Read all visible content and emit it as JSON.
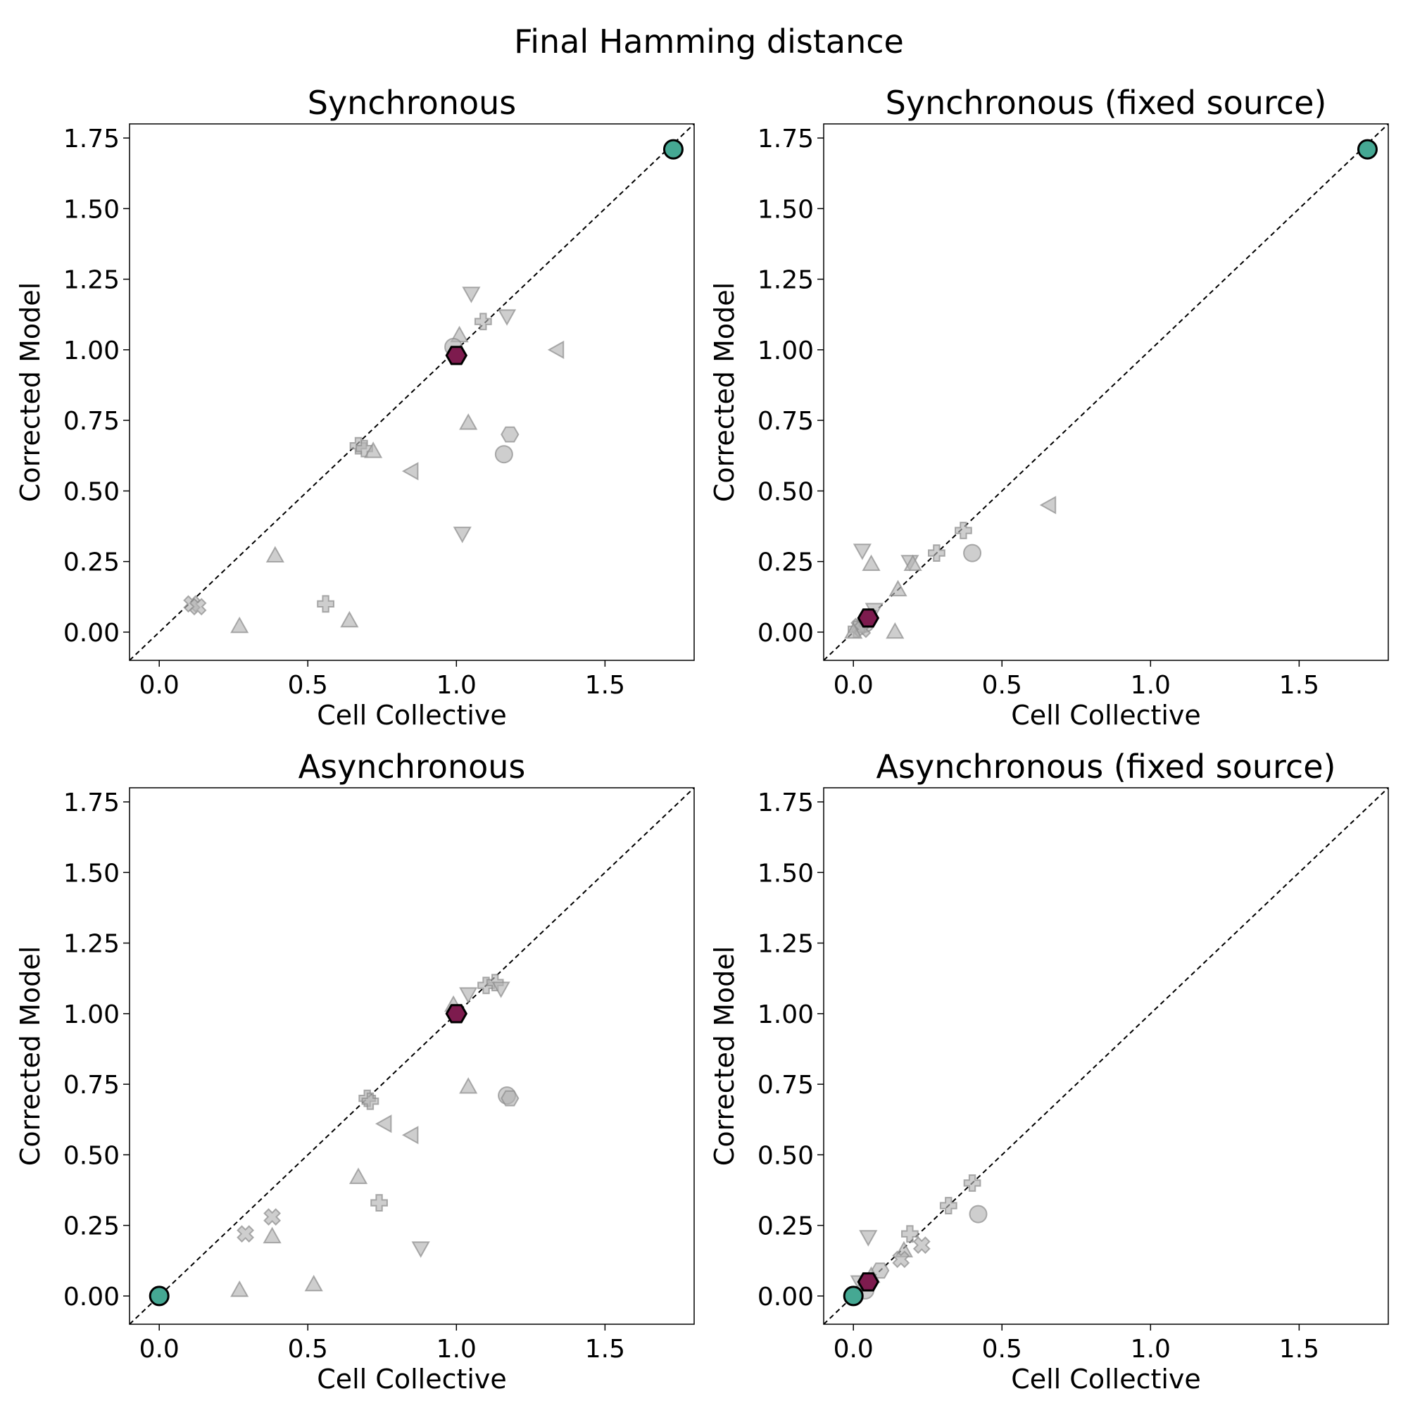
{
  "figure": {
    "suptitle": "Final Hamming distance"
  },
  "chart_data": [
    {
      "type": "scatter",
      "title": "Synchronous",
      "xlabel": "Cell Collective",
      "ylabel": "Corrected Model",
      "xlim": [
        -0.1,
        1.8
      ],
      "ylim": [
        -0.1,
        1.8
      ],
      "xticks": [
        "0.0",
        "0.5",
        "1.0",
        "1.5"
      ],
      "yticks": [
        "0.00",
        "0.25",
        "0.50",
        "0.75",
        "1.00",
        "1.25",
        "1.50",
        "1.75"
      ],
      "diagonal": true,
      "points": [
        {
          "x": 1.05,
          "y": 1.2,
          "marker": "triangle-down",
          "highlight": "none"
        },
        {
          "x": 1.09,
          "y": 1.1,
          "marker": "plus",
          "highlight": "none"
        },
        {
          "x": 1.17,
          "y": 1.12,
          "marker": "triangle-down",
          "highlight": "none"
        },
        {
          "x": 1.01,
          "y": 1.05,
          "marker": "triangle-up",
          "highlight": "none"
        },
        {
          "x": 0.99,
          "y": 1.01,
          "marker": "circle",
          "highlight": "none"
        },
        {
          "x": 1.34,
          "y": 1.0,
          "marker": "triangle-left",
          "highlight": "none"
        },
        {
          "x": 1.04,
          "y": 0.74,
          "marker": "triangle-up",
          "highlight": "none"
        },
        {
          "x": 1.18,
          "y": 0.7,
          "marker": "hexagon",
          "highlight": "none"
        },
        {
          "x": 1.16,
          "y": 0.63,
          "marker": "circle",
          "highlight": "none"
        },
        {
          "x": 0.67,
          "y": 0.66,
          "marker": "plus",
          "highlight": "none"
        },
        {
          "x": 0.69,
          "y": 0.65,
          "marker": "plus",
          "highlight": "none"
        },
        {
          "x": 0.72,
          "y": 0.64,
          "marker": "triangle-up",
          "highlight": "none"
        },
        {
          "x": 0.85,
          "y": 0.57,
          "marker": "triangle-left",
          "highlight": "none"
        },
        {
          "x": 1.02,
          "y": 0.35,
          "marker": "triangle-down",
          "highlight": "none"
        },
        {
          "x": 0.39,
          "y": 0.27,
          "marker": "triangle-up",
          "highlight": "none"
        },
        {
          "x": 0.11,
          "y": 0.1,
          "marker": "x",
          "highlight": "none"
        },
        {
          "x": 0.13,
          "y": 0.09,
          "marker": "x",
          "highlight": "none"
        },
        {
          "x": 0.56,
          "y": 0.1,
          "marker": "plus",
          "highlight": "none"
        },
        {
          "x": 0.27,
          "y": 0.02,
          "marker": "triangle-up",
          "highlight": "none"
        },
        {
          "x": 0.64,
          "y": 0.04,
          "marker": "triangle-up",
          "highlight": "none"
        },
        {
          "x": 1.0,
          "y": 0.98,
          "marker": "hexagon",
          "highlight": "purple"
        },
        {
          "x": 1.73,
          "y": 1.71,
          "marker": "circle",
          "highlight": "teal"
        }
      ]
    },
    {
      "type": "scatter",
      "title": "Synchronous (fixed source)",
      "xlabel": "Cell Collective",
      "ylabel": "Corrected Model",
      "xlim": [
        -0.1,
        1.8
      ],
      "ylim": [
        -0.1,
        1.8
      ],
      "xticks": [
        "0.0",
        "0.5",
        "1.0",
        "1.5"
      ],
      "yticks": [
        "0.00",
        "0.25",
        "0.50",
        "0.75",
        "1.00",
        "1.25",
        "1.50",
        "1.75"
      ],
      "diagonal": true,
      "points": [
        {
          "x": 0.66,
          "y": 0.45,
          "marker": "triangle-left",
          "highlight": "none"
        },
        {
          "x": 0.37,
          "y": 0.36,
          "marker": "plus",
          "highlight": "none"
        },
        {
          "x": 0.4,
          "y": 0.28,
          "marker": "circle",
          "highlight": "none"
        },
        {
          "x": 0.28,
          "y": 0.28,
          "marker": "plus",
          "highlight": "none"
        },
        {
          "x": 0.03,
          "y": 0.29,
          "marker": "triangle-down",
          "highlight": "none"
        },
        {
          "x": 0.06,
          "y": 0.24,
          "marker": "triangle-up",
          "highlight": "none"
        },
        {
          "x": 0.19,
          "y": 0.25,
          "marker": "triangle-down",
          "highlight": "none"
        },
        {
          "x": 0.2,
          "y": 0.24,
          "marker": "triangle-up",
          "highlight": "none"
        },
        {
          "x": 0.15,
          "y": 0.15,
          "marker": "triangle-up",
          "highlight": "none"
        },
        {
          "x": 0.07,
          "y": 0.08,
          "marker": "triangle-down",
          "highlight": "none"
        },
        {
          "x": 0.14,
          "y": 0.0,
          "marker": "triangle-up",
          "highlight": "none"
        },
        {
          "x": 0.04,
          "y": 0.03,
          "marker": "circle",
          "highlight": "none"
        },
        {
          "x": 0.02,
          "y": 0.02,
          "marker": "x",
          "highlight": "none"
        },
        {
          "x": 0.01,
          "y": 0.01,
          "marker": "plus",
          "highlight": "none"
        },
        {
          "x": 0.03,
          "y": 0.01,
          "marker": "x",
          "highlight": "none"
        },
        {
          "x": 0.0,
          "y": 0.0,
          "marker": "triangle-up",
          "highlight": "none"
        },
        {
          "x": 0.05,
          "y": 0.05,
          "marker": "hexagon",
          "highlight": "purple"
        },
        {
          "x": 1.73,
          "y": 1.71,
          "marker": "circle",
          "highlight": "teal"
        }
      ]
    },
    {
      "type": "scatter",
      "title": "Asynchronous",
      "xlabel": "Cell Collective",
      "ylabel": "Corrected Model",
      "xlim": [
        -0.1,
        1.8
      ],
      "ylim": [
        -0.1,
        1.8
      ],
      "xticks": [
        "0.0",
        "0.5",
        "1.0",
        "1.5"
      ],
      "yticks": [
        "0.00",
        "0.25",
        "0.50",
        "0.75",
        "1.00",
        "1.25",
        "1.50",
        "1.75"
      ],
      "diagonal": true,
      "points": [
        {
          "x": 1.1,
          "y": 1.1,
          "marker": "plus",
          "highlight": "none"
        },
        {
          "x": 1.13,
          "y": 1.11,
          "marker": "plus",
          "highlight": "none"
        },
        {
          "x": 1.15,
          "y": 1.09,
          "marker": "triangle-down",
          "highlight": "none"
        },
        {
          "x": 1.04,
          "y": 1.07,
          "marker": "triangle-down",
          "highlight": "none"
        },
        {
          "x": 0.99,
          "y": 1.03,
          "marker": "triangle-up",
          "highlight": "none"
        },
        {
          "x": 1.04,
          "y": 0.74,
          "marker": "triangle-up",
          "highlight": "none"
        },
        {
          "x": 1.17,
          "y": 0.71,
          "marker": "circle",
          "highlight": "none"
        },
        {
          "x": 1.18,
          "y": 0.7,
          "marker": "hexagon",
          "highlight": "none"
        },
        {
          "x": 0.7,
          "y": 0.7,
          "marker": "plus",
          "highlight": "none"
        },
        {
          "x": 0.71,
          "y": 0.69,
          "marker": "plus",
          "highlight": "none"
        },
        {
          "x": 0.76,
          "y": 0.61,
          "marker": "triangle-left",
          "highlight": "none"
        },
        {
          "x": 0.85,
          "y": 0.57,
          "marker": "triangle-left",
          "highlight": "none"
        },
        {
          "x": 0.67,
          "y": 0.42,
          "marker": "triangle-up",
          "highlight": "none"
        },
        {
          "x": 0.74,
          "y": 0.33,
          "marker": "plus",
          "highlight": "none"
        },
        {
          "x": 0.38,
          "y": 0.28,
          "marker": "x",
          "highlight": "none"
        },
        {
          "x": 0.29,
          "y": 0.22,
          "marker": "x",
          "highlight": "none"
        },
        {
          "x": 0.38,
          "y": 0.21,
          "marker": "triangle-up",
          "highlight": "none"
        },
        {
          "x": 0.88,
          "y": 0.17,
          "marker": "triangle-down",
          "highlight": "none"
        },
        {
          "x": 0.27,
          "y": 0.02,
          "marker": "triangle-up",
          "highlight": "none"
        },
        {
          "x": 0.52,
          "y": 0.04,
          "marker": "triangle-up",
          "highlight": "none"
        },
        {
          "x": 1.0,
          "y": 1.0,
          "marker": "hexagon",
          "highlight": "purple"
        },
        {
          "x": 0.0,
          "y": 0.0,
          "marker": "circle",
          "highlight": "teal"
        }
      ]
    },
    {
      "type": "scatter",
      "title": "Asynchronous (fixed source)",
      "xlabel": "Cell Collective",
      "ylabel": "Corrected Model",
      "xlim": [
        -0.1,
        1.8
      ],
      "ylim": [
        -0.1,
        1.8
      ],
      "xticks": [
        "0.0",
        "0.5",
        "1.0",
        "1.5"
      ],
      "yticks": [
        "0.00",
        "0.25",
        "0.50",
        "0.75",
        "1.00",
        "1.25",
        "1.50",
        "1.75"
      ],
      "diagonal": true,
      "points": [
        {
          "x": 0.4,
          "y": 0.4,
          "marker": "plus",
          "highlight": "none"
        },
        {
          "x": 0.32,
          "y": 0.32,
          "marker": "plus",
          "highlight": "none"
        },
        {
          "x": 0.42,
          "y": 0.29,
          "marker": "circle",
          "highlight": "none"
        },
        {
          "x": 0.05,
          "y": 0.21,
          "marker": "triangle-down",
          "highlight": "none"
        },
        {
          "x": 0.19,
          "y": 0.22,
          "marker": "plus",
          "highlight": "none"
        },
        {
          "x": 0.23,
          "y": 0.18,
          "marker": "x",
          "highlight": "none"
        },
        {
          "x": 0.17,
          "y": 0.16,
          "marker": "triangle-up",
          "highlight": "none"
        },
        {
          "x": 0.16,
          "y": 0.13,
          "marker": "x",
          "highlight": "none"
        },
        {
          "x": 0.09,
          "y": 0.09,
          "marker": "hexagon",
          "highlight": "none"
        },
        {
          "x": 0.06,
          "y": 0.07,
          "marker": "triangle-up",
          "highlight": "none"
        },
        {
          "x": 0.02,
          "y": 0.05,
          "marker": "triangle-down",
          "highlight": "none"
        },
        {
          "x": 0.04,
          "y": 0.02,
          "marker": "circle",
          "highlight": "none"
        },
        {
          "x": 0.05,
          "y": 0.05,
          "marker": "hexagon",
          "highlight": "purple"
        },
        {
          "x": 0.0,
          "y": 0.0,
          "marker": "circle",
          "highlight": "teal"
        }
      ]
    }
  ],
  "colors": {
    "gray_fill": "#b3b3b3",
    "gray_edge": "#8c8c8c",
    "teal": "#45a893",
    "purple": "#7d1b4e",
    "dark_edge": "#000000",
    "diagonal": "#000000"
  }
}
